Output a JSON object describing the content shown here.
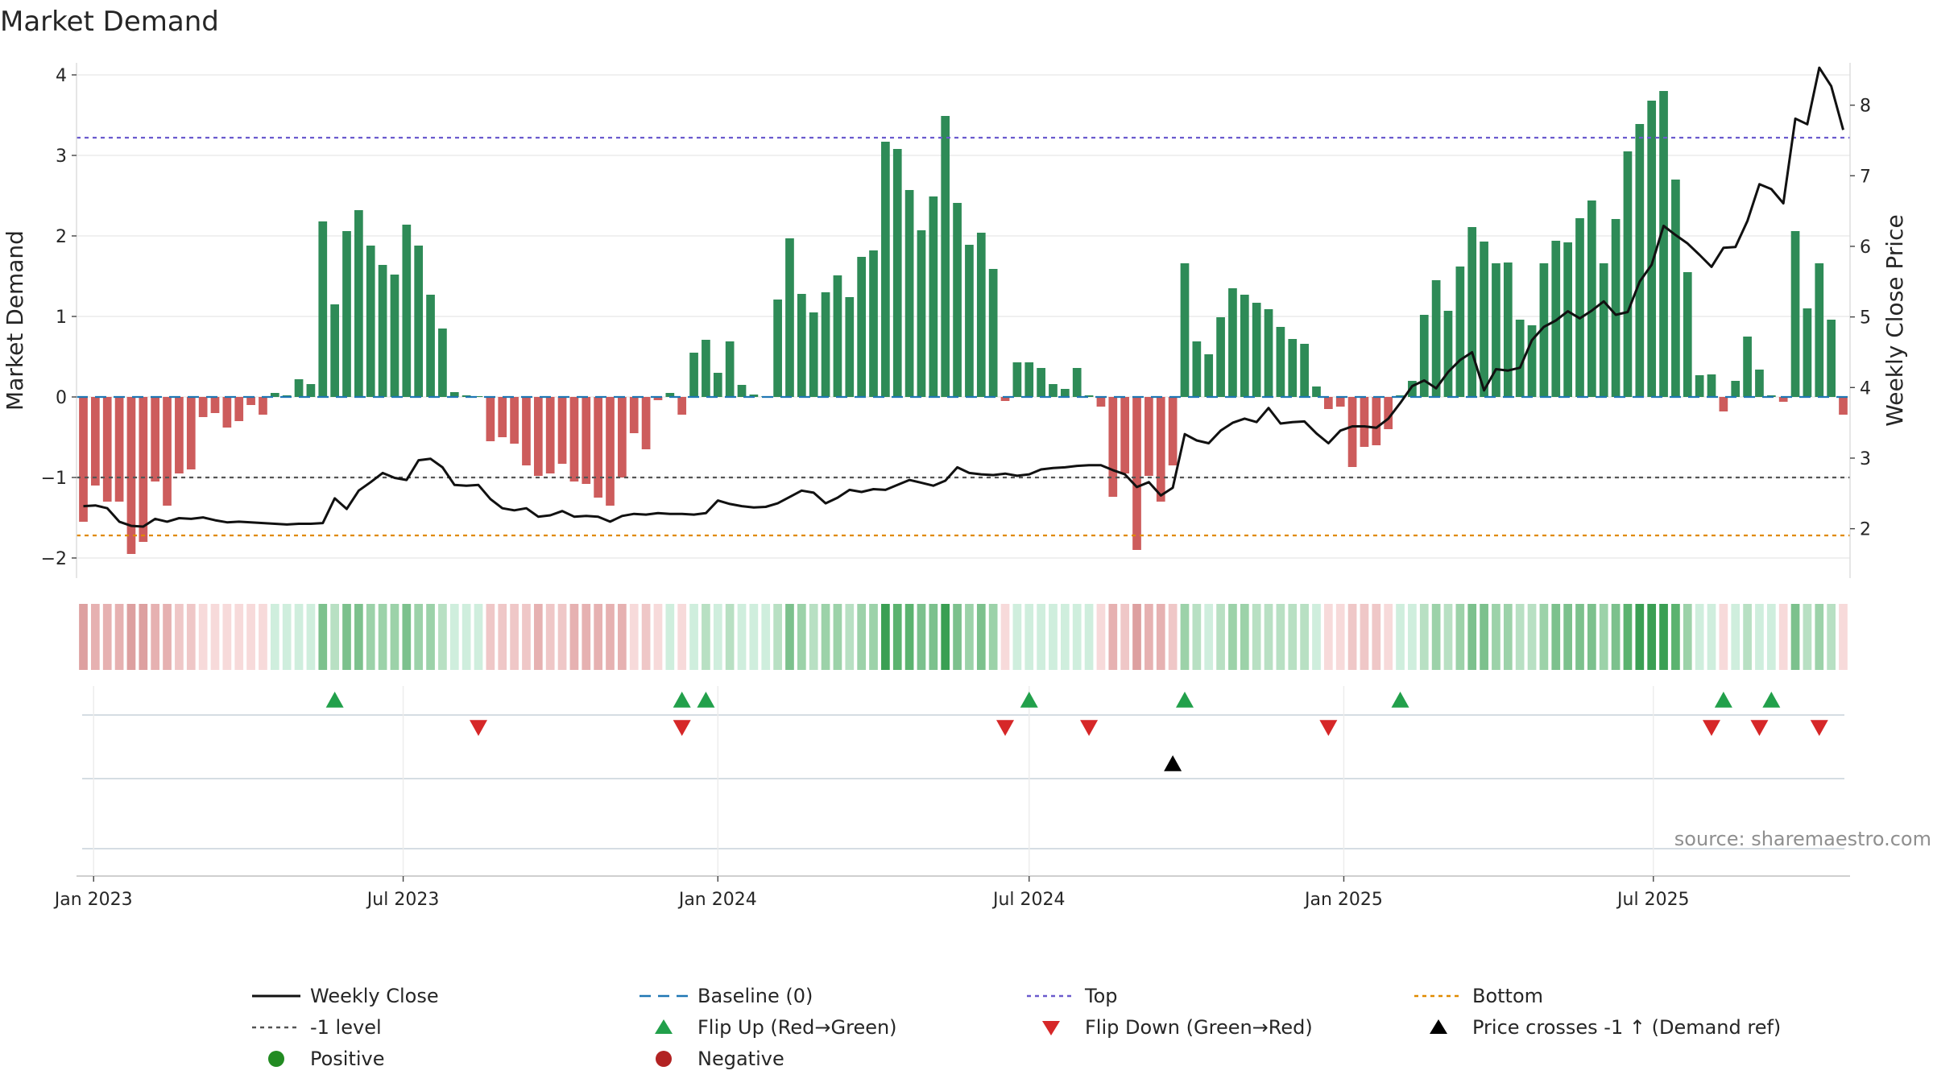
{
  "chart_data": {
    "type": "bar",
    "title": "Market Demand",
    "ylabel": "Market Demand",
    "y2label": "Weekly Close Price",
    "ylim": [
      -2.25,
      4.15
    ],
    "y2lim": [
      1.3,
      8.6
    ],
    "yticks": [
      -2,
      -1,
      0,
      1,
      2,
      3,
      4
    ],
    "yticklabels": [
      "−2",
      "−1",
      "0",
      "1",
      "2",
      "3",
      "4"
    ],
    "y2ticks": [
      2,
      3,
      4,
      5,
      6,
      7,
      8
    ],
    "y2ticklabels": [
      "2",
      "3",
      "4",
      "5",
      "6",
      "7",
      "8"
    ],
    "x_start": "2022-12-26",
    "week_days": 7,
    "xlim": [
      "2022-12-22",
      "2025-10-24"
    ],
    "xticks": [
      "2023-01-01",
      "2023-07-01",
      "2024-01-01",
      "2024-07-01",
      "2025-01-01",
      "2025-07-01"
    ],
    "xticklabels": [
      "Jan 2023",
      "Jul 2023",
      "Jan 2024",
      "Jul 2024",
      "Jan 2025",
      "Jul 2025"
    ],
    "reference_lines": {
      "top": 3.22,
      "bottom": -1.72,
      "minus_one": -1,
      "baseline": 0
    },
    "series": [
      {
        "name": "Market Demand",
        "values": [
          -1.55,
          -1.1,
          -1.3,
          -1.3,
          -1.95,
          -1.8,
          -1.05,
          -1.35,
          -0.95,
          -0.9,
          -0.25,
          -0.2,
          -0.38,
          -0.3,
          -0.1,
          -0.22,
          0.05,
          0.02,
          0.22,
          0.16,
          2.18,
          1.15,
          2.06,
          2.32,
          1.88,
          1.64,
          1.52,
          2.14,
          1.88,
          1.27,
          0.85,
          0.06,
          0.02,
          0.01,
          -0.55,
          -0.5,
          -0.58,
          -0.85,
          -0.98,
          -0.95,
          -0.83,
          -1.05,
          -1.08,
          -1.25,
          -1.35,
          -1.0,
          -0.45,
          -0.65,
          -0.04,
          0.05,
          -0.22,
          0.55,
          0.71,
          0.3,
          0.69,
          0.15,
          0.03,
          0.01,
          1.21,
          1.97,
          1.28,
          1.05,
          1.3,
          1.51,
          1.24,
          1.74,
          1.82,
          3.17,
          3.08,
          2.57,
          2.07,
          2.49,
          3.49,
          2.41,
          1.89,
          2.04,
          1.59,
          -0.05,
          0.43,
          0.43,
          0.36,
          0.16,
          0.1,
          0.36,
          0.02,
          -0.12,
          -1.24,
          -0.95,
          -1.9,
          -0.98,
          -1.3,
          -0.85,
          1.66,
          0.69,
          0.53,
          0.99,
          1.35,
          1.27,
          1.17,
          1.09,
          0.87,
          0.72,
          0.66,
          0.13,
          -0.15,
          -0.12,
          -0.87,
          -0.62,
          -0.6,
          -0.4,
          0.02,
          0.2,
          1.02,
          1.45,
          1.07,
          1.62,
          2.11,
          1.93,
          1.66,
          1.67,
          0.96,
          0.89,
          1.66,
          1.94,
          1.92,
          2.22,
          2.44,
          1.66,
          2.21,
          3.05,
          3.39,
          3.68,
          3.8,
          2.7,
          1.55,
          0.27,
          0.28,
          -0.18,
          0.2,
          0.75,
          0.34,
          0.02,
          -0.06,
          2.06,
          1.1,
          1.66,
          0.96,
          -0.22
        ]
      },
      {
        "name": "Weekly Close",
        "values": [
          2.32,
          2.33,
          2.29,
          2.1,
          2.04,
          2.03,
          2.14,
          2.1,
          2.15,
          2.14,
          2.16,
          2.12,
          2.09,
          2.1,
          2.09,
          2.08,
          2.07,
          2.06,
          2.07,
          2.07,
          2.08,
          2.43,
          2.28,
          2.54,
          2.66,
          2.79,
          2.72,
          2.69,
          2.97,
          2.99,
          2.87,
          2.62,
          2.61,
          2.62,
          2.42,
          2.29,
          2.26,
          2.29,
          2.17,
          2.19,
          2.25,
          2.17,
          2.18,
          2.17,
          2.1,
          2.18,
          2.21,
          2.2,
          2.22,
          2.21,
          2.21,
          2.2,
          2.22,
          2.4,
          2.35,
          2.32,
          2.3,
          2.31,
          2.36,
          2.45,
          2.54,
          2.51,
          2.36,
          2.44,
          2.55,
          2.52,
          2.56,
          2.55,
          2.62,
          2.69,
          2.65,
          2.61,
          2.68,
          2.87,
          2.79,
          2.77,
          2.76,
          2.78,
          2.75,
          2.77,
          2.84,
          2.86,
          2.87,
          2.89,
          2.9,
          2.9,
          2.83,
          2.77,
          2.59,
          2.66,
          2.47,
          2.58,
          3.34,
          3.25,
          3.21,
          3.39,
          3.5,
          3.56,
          3.51,
          3.71,
          3.49,
          3.51,
          3.52,
          3.35,
          3.21,
          3.39,
          3.45,
          3.45,
          3.43,
          3.56,
          3.78,
          4.02,
          4.1,
          3.99,
          4.22,
          4.39,
          4.5,
          3.96,
          4.26,
          4.24,
          4.28,
          4.67,
          4.86,
          4.95,
          5.08,
          4.98,
          5.09,
          5.22,
          5.03,
          5.07,
          5.5,
          5.74,
          6.29,
          6.16,
          6.04,
          5.88,
          5.71,
          5.98,
          5.99,
          6.36,
          6.88,
          6.81,
          6.61,
          7.81,
          7.73,
          8.53,
          8.27,
          7.65
        ]
      }
    ],
    "heat_colors": [
      "#cfeedd",
      "#b8e0c3",
      "#9cd2a9",
      "#7cc18d",
      "#5bb36f",
      "#3a9f53"
    ],
    "heat_neg_colors": [
      "#f7dada",
      "#efc7c7",
      "#e6b1b1",
      "#dda0a0"
    ],
    "flip_up_weeks": [
      21,
      50,
      52,
      79,
      92,
      110,
      137,
      141
    ],
    "flip_down_weeks": [
      33,
      50,
      77,
      84,
      104,
      136,
      140,
      145
    ],
    "price_cross_weeks": [
      91
    ],
    "colors": {
      "positive": "#2e8b57",
      "negative": "#cd5c5c",
      "close_line": "#111111",
      "baseline": "#1f77b4",
      "top_line": "#6a5acd",
      "bottom_line": "#e08a00",
      "minus_one_line": "#555555",
      "flip_up": "#22a04b",
      "flip_down": "#d62728",
      "price_cross": "#000000",
      "positive_dot": "#228b22",
      "negative_dot": "#b22222"
    },
    "legend": {
      "placement": "bottom",
      "items": [
        {
          "label": "Weekly Close",
          "icon": "solid-line",
          "color": "#111111"
        },
        {
          "label": "Baseline (0)",
          "icon": "dashed-line",
          "color": "#1f77b4"
        },
        {
          "label": "Top",
          "icon": "dotted-line",
          "color": "#6a5acd"
        },
        {
          "label": "Bottom",
          "icon": "dotted-line",
          "color": "#e08a00"
        },
        {
          "label": "-1 level",
          "icon": "dotted-line",
          "color": "#555555"
        },
        {
          "label": "Flip Up (Red→Green)",
          "icon": "triangle-up",
          "color": "#22a04b"
        },
        {
          "label": "Flip Down (Green→Red)",
          "icon": "triangle-down",
          "color": "#d62728"
        },
        {
          "label": "Price crosses -1 ↑ (Demand ref)",
          "icon": "triangle-up",
          "color": "#000000"
        },
        {
          "label": "Positive",
          "icon": "dot",
          "color": "#228b22"
        },
        {
          "label": "Negative",
          "icon": "dot",
          "color": "#b22222"
        }
      ]
    },
    "source_text": "source: sharemaestro.com"
  }
}
